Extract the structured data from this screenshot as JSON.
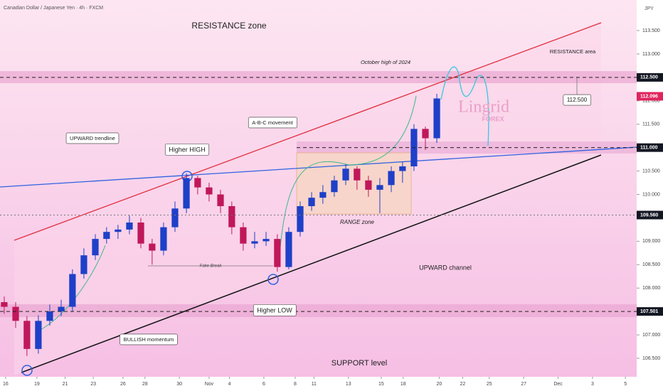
{
  "chart_data": {
    "type": "candlestick",
    "title": "Canadian Dollar / Japanese Yen · 4h · FXCM",
    "currency": "JPY",
    "up_color": "#1e40c8",
    "down_color": "#c0185a",
    "xlim": [
      -0.36,
      40.32
    ],
    "xticks": [
      {
        "value": 0,
        "label": "16"
      },
      {
        "value": 2,
        "label": "19"
      },
      {
        "value": 3.8,
        "label": "21"
      },
      {
        "value": 5.6,
        "label": "23"
      },
      {
        "value": 7.5,
        "label": "26"
      },
      {
        "value": 8.9,
        "label": "28"
      },
      {
        "value": 11.1,
        "label": "30"
      },
      {
        "value": 13,
        "label": "Nov"
      },
      {
        "value": 14.3,
        "label": "4"
      },
      {
        "value": 16.5,
        "label": "6"
      },
      {
        "value": 18.5,
        "label": "8"
      },
      {
        "value": 19.7,
        "label": "11"
      },
      {
        "value": 21.9,
        "label": "13"
      },
      {
        "value": 24,
        "label": "15"
      },
      {
        "value": 25.4,
        "label": "18"
      },
      {
        "value": 27.7,
        "label": "20"
      },
      {
        "value": 29.2,
        "label": "22"
      },
      {
        "value": 30.9,
        "label": "25"
      },
      {
        "value": 33.1,
        "label": "27"
      },
      {
        "value": 35.3,
        "label": "Dec"
      },
      {
        "value": 37.5,
        "label": "3"
      },
      {
        "value": 39.6,
        "label": "5"
      }
    ],
    "ylim": [
      106.136,
      114.153
    ],
    "yticks": [
      {
        "value": 106.5,
        "label": "106.500"
      },
      {
        "value": 107,
        "label": "107.000"
      },
      {
        "value": 107.5,
        "label": "107.500"
      },
      {
        "value": 108,
        "label": "108.000"
      },
      {
        "value": 108.5,
        "label": "108.500"
      },
      {
        "value": 109,
        "label": "109.000"
      },
      {
        "value": 109.5,
        "label": "109.500"
      },
      {
        "value": 110,
        "label": "110.000"
      },
      {
        "value": 110.5,
        "label": "110.500"
      },
      {
        "value": 111,
        "label": "111.000"
      },
      {
        "value": 111.5,
        "label": "111.500"
      },
      {
        "value": 112,
        "label": "112.000"
      },
      {
        "value": 112.5,
        "label": "112.500"
      },
      {
        "value": 113,
        "label": "113.000"
      },
      {
        "value": 113.5,
        "label": "113.500"
      }
    ],
    "levels": [
      {
        "value": 112.5,
        "label": "112.500"
      },
      {
        "value": 111,
        "label": "111.000"
      },
      {
        "value": 109.56,
        "label": "109.560"
      },
      {
        "value": 107.501,
        "label": "107.501"
      }
    ],
    "last_price": {
      "value": 112.096,
      "label": "112.096"
    },
    "x": [
      -0.09,
      0.64,
      1.36,
      2.09,
      2.82,
      3.55,
      4.27,
      5.0,
      5.73,
      6.45,
      7.18,
      7.91,
      8.64,
      9.36,
      10.09,
      10.82,
      11.55,
      12.27,
      13.0,
      13.73,
      14.45,
      15.18,
      15.91,
      16.64,
      17.36,
      18.09,
      18.82,
      19.55,
      20.27,
      21.0,
      21.73,
      22.45,
      23.18,
      23.91,
      24.64,
      25.36,
      26.09,
      26.82,
      27.55
    ],
    "open": [
      107.7,
      107.6,
      107.3,
      106.7,
      107.3,
      107.5,
      107.6,
      108.3,
      108.7,
      109.05,
      109.2,
      109.25,
      109.4,
      108.95,
      108.8,
      109.3,
      109.7,
      110.35,
      110.15,
      110.0,
      109.75,
      109.3,
      108.95,
      109.0,
      109.05,
      108.45,
      109.2,
      109.75,
      109.93,
      110.05,
      110.3,
      110.55,
      110.3,
      110.1,
      110.2,
      110.5,
      110.6,
      111.4,
      111.2
    ],
    "high": [
      107.82,
      107.7,
      107.4,
      107.42,
      107.65,
      107.75,
      108.4,
      108.85,
      109.15,
      109.3,
      109.35,
      109.55,
      109.5,
      109.05,
      109.4,
      109.85,
      110.45,
      110.4,
      110.25,
      110.1,
      109.85,
      109.4,
      109.2,
      109.2,
      109.15,
      109.3,
      109.85,
      110.05,
      110.2,
      110.4,
      110.65,
      110.6,
      110.4,
      110.35,
      110.6,
      110.7,
      111.5,
      111.45,
      112.15
    ],
    "low": [
      107.45,
      107.15,
      106.55,
      106.6,
      107.2,
      107.4,
      107.5,
      108.2,
      108.6,
      108.95,
      109.05,
      109.15,
      108.85,
      108.5,
      108.7,
      109.2,
      109.6,
      110.0,
      109.85,
      109.6,
      109.15,
      108.8,
      108.85,
      108.9,
      108.35,
      108.4,
      109.1,
      109.65,
      109.8,
      109.95,
      110.2,
      110.1,
      109.95,
      109.6,
      110.05,
      110.25,
      110.5,
      110.95,
      111.1
    ],
    "close": [
      107.6,
      107.3,
      106.7,
      107.3,
      107.5,
      107.6,
      108.3,
      108.7,
      109.05,
      109.2,
      109.25,
      109.4,
      108.95,
      108.8,
      109.3,
      109.7,
      110.35,
      110.15,
      110.0,
      109.75,
      109.3,
      108.95,
      109.0,
      109.05,
      108.45,
      109.2,
      109.75,
      109.93,
      110.05,
      110.3,
      110.55,
      110.3,
      110.1,
      110.2,
      110.5,
      110.6,
      111.4,
      111.2,
      112.05
    ],
    "annotations": [
      "RESISTANCE zone",
      "October high of 2024",
      "RESISTANCE area",
      "112.500",
      "UPWARD trendline",
      "Higher HIGH",
      "A-B-C movement",
      "RANGE zone",
      "Fake Break",
      "UPWARD channel",
      "Higher LOW",
      "BULLISH momentum",
      "SUPPORT level"
    ],
    "watermark": [
      "Lingrid",
      "FOREX"
    ]
  }
}
